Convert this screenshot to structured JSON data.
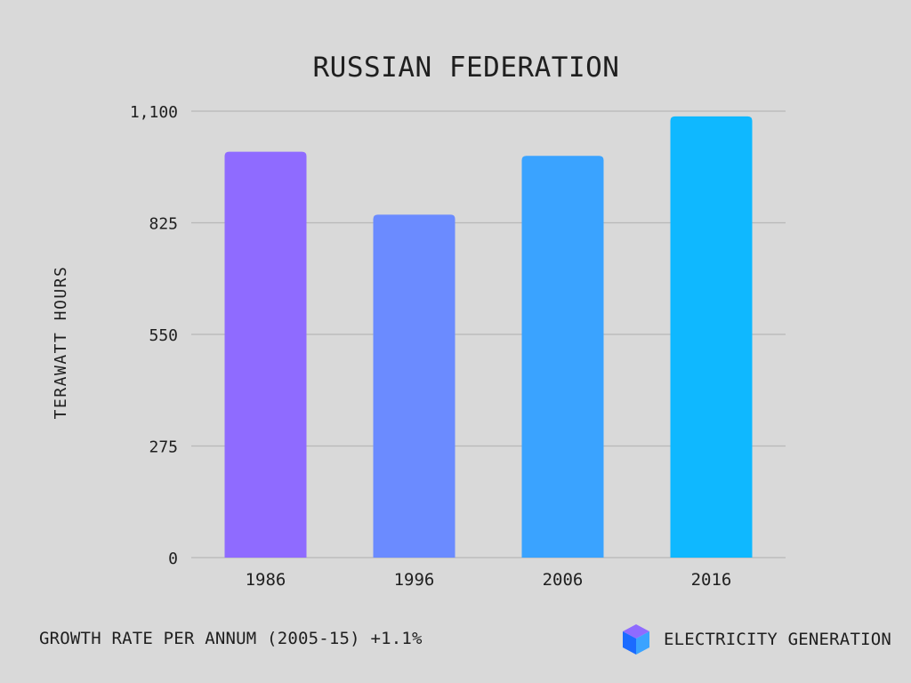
{
  "chart_data": {
    "type": "bar",
    "title": "RUSSIAN FEDERATION",
    "ylabel": "TERAWATT HOURS",
    "xlabel": "",
    "categories": [
      "1986",
      "1996",
      "2006",
      "2016"
    ],
    "values": [
      1000,
      845,
      990,
      1087
    ],
    "ylim": [
      0,
      1100
    ],
    "yticks": [
      0,
      275,
      550,
      825,
      1100
    ],
    "ytick_labels": [
      "0",
      "275",
      "550",
      "825",
      "1,100"
    ],
    "grid": true,
    "colors": [
      "#8f6bff",
      "#6b8bff",
      "#3aa3ff",
      "#0fb8ff"
    ]
  },
  "footer": {
    "growth_text": "GROWTH RATE PER ANNUM (2005-15) +1.1%",
    "brand_label": "ELECTRICITY GENERATION",
    "brand_icon": "cube-icon",
    "brand_colors": [
      "#8f6bff",
      "#3aa3ff",
      "#1b6bff"
    ]
  }
}
